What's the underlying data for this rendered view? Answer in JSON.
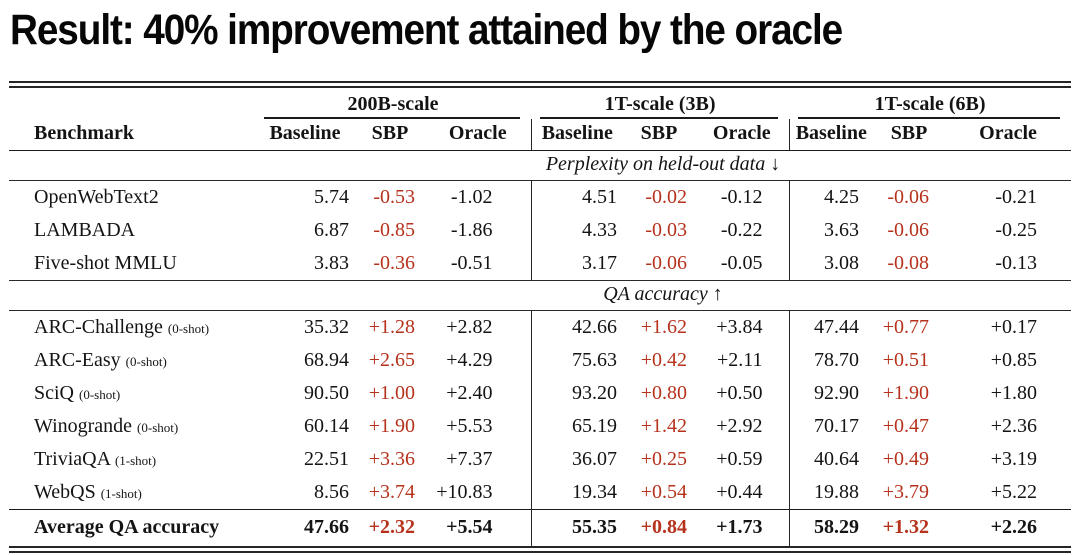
{
  "title": "Result: 40% improvement attained by the oracle",
  "colors": {
    "sbp_red": "#b6321c",
    "text": "#141414",
    "rule": "#1a1a1a"
  },
  "table": {
    "benchmark_header": "Benchmark",
    "groups": [
      {
        "label": "200B-scale",
        "columns": [
          "Baseline",
          "SBP",
          "Oracle"
        ]
      },
      {
        "label": "1T-scale (3B)",
        "columns": [
          "Baseline",
          "SBP",
          "Oracle"
        ]
      },
      {
        "label": "1T-scale (6B)",
        "columns": [
          "Baseline",
          "SBP",
          "Oracle"
        ]
      }
    ],
    "sections": [
      {
        "header": "Perplexity on held-out data ↓",
        "rows": [
          {
            "name": "OpenWebText2",
            "shot": "",
            "values": [
              "5.74",
              "-0.53",
              "-1.02",
              "4.51",
              "-0.02",
              "-0.12",
              "4.25",
              "-0.06",
              "-0.21"
            ]
          },
          {
            "name": "LAMBADA",
            "shot": "",
            "values": [
              "6.87",
              "-0.85",
              "-1.86",
              "4.33",
              "-0.03",
              "-0.22",
              "3.63",
              "-0.06",
              "-0.25"
            ]
          },
          {
            "name": "Five-shot MMLU",
            "shot": "",
            "values": [
              "3.83",
              "-0.36",
              "-0.51",
              "3.17",
              "-0.06",
              "-0.05",
              "3.08",
              "-0.08",
              "-0.13"
            ]
          }
        ]
      },
      {
        "header": "QA accuracy ↑",
        "rows": [
          {
            "name": "ARC-Challenge",
            "shot": "(0-shot)",
            "values": [
              "35.32",
              "+1.28",
              "+2.82",
              "42.66",
              "+1.62",
              "+3.84",
              "47.44",
              "+0.77",
              "+0.17"
            ]
          },
          {
            "name": "ARC-Easy",
            "shot": "(0-shot)",
            "values": [
              "68.94",
              "+2.65",
              "+4.29",
              "75.63",
              "+0.42",
              "+2.11",
              "78.70",
              "+0.51",
              "+0.85"
            ]
          },
          {
            "name": "SciQ",
            "shot": "(0-shot)",
            "values": [
              "90.50",
              "+1.00",
              "+2.40",
              "93.20",
              "+0.80",
              "+0.50",
              "92.90",
              "+1.90",
              "+1.80"
            ]
          },
          {
            "name": "Winogrande",
            "shot": "(0-shot)",
            "values": [
              "60.14",
              "+1.90",
              "+5.53",
              "65.19",
              "+1.42",
              "+2.92",
              "70.17",
              "+0.47",
              "+2.36"
            ]
          },
          {
            "name": "TriviaQA",
            "shot": "(1-shot)",
            "values": [
              "22.51",
              "+3.36",
              "+7.37",
              "36.07",
              "+0.25",
              "+0.59",
              "40.64",
              "+0.49",
              "+3.19"
            ]
          },
          {
            "name": "WebQS",
            "shot": "(1-shot)",
            "values": [
              "8.56",
              "+3.74",
              "+10.83",
              "19.34",
              "+0.54",
              "+0.44",
              "19.88",
              "+3.79",
              "+5.22"
            ]
          }
        ]
      }
    ],
    "average_row": {
      "name": "Average QA accuracy",
      "values": [
        "47.66",
        "+2.32",
        "+5.54",
        "55.35",
        "+0.84",
        "+1.73",
        "58.29",
        "+1.32",
        "+2.26"
      ]
    }
  }
}
